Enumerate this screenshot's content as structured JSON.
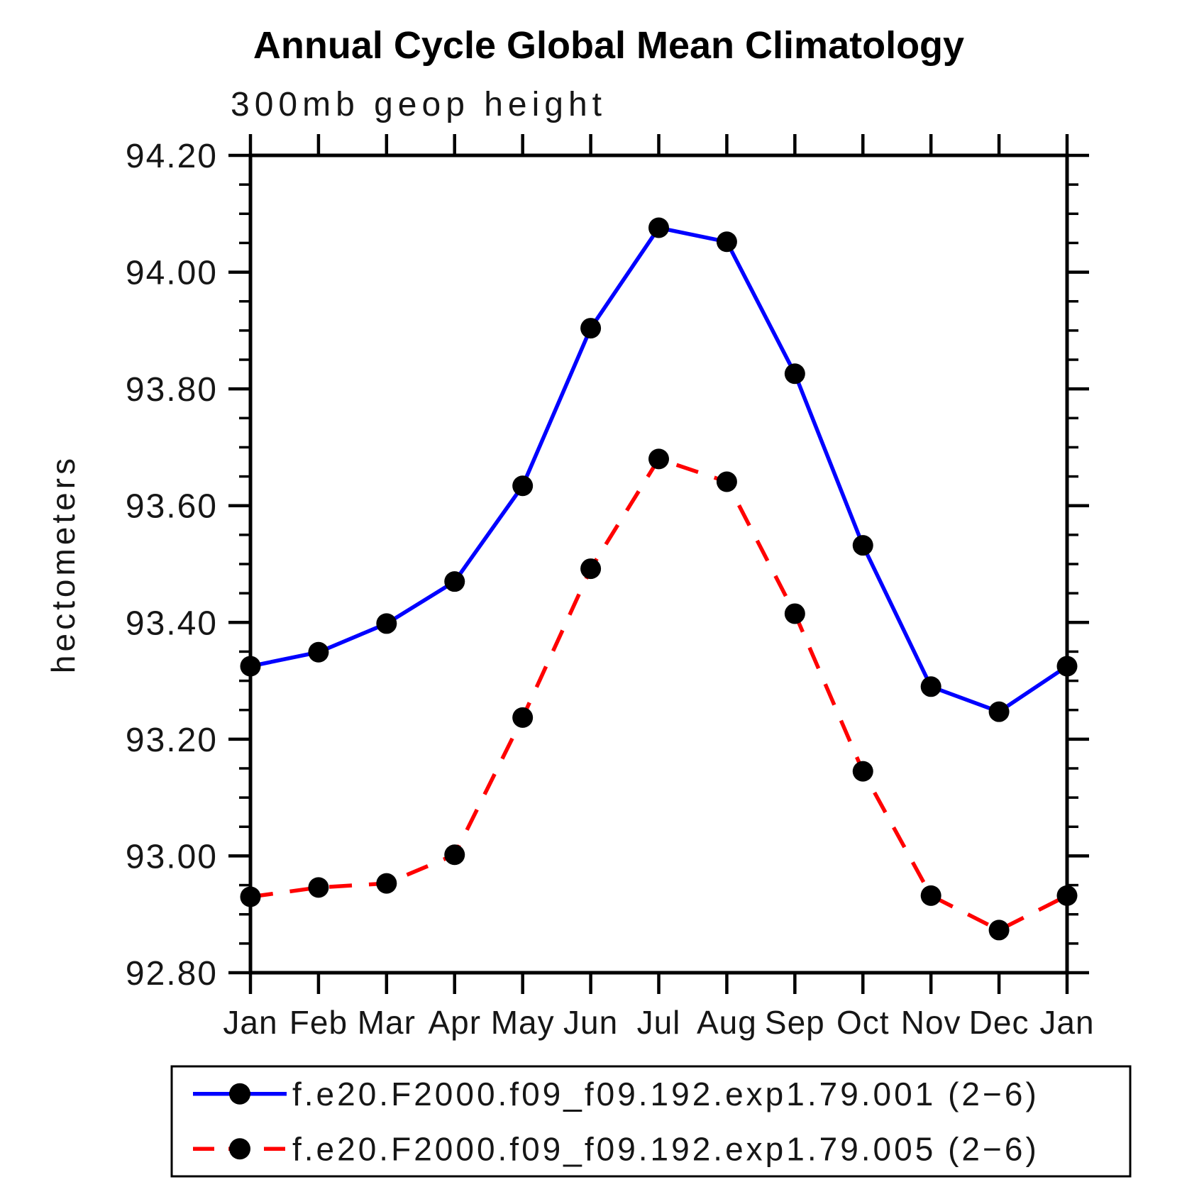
{
  "chart_data": {
    "type": "line",
    "title": "Annual Cycle Global Mean Climatology",
    "subtitle": "300mb geop height",
    "ylabel": "hectometers",
    "xlabel": "",
    "categories": [
      "Jan",
      "Feb",
      "Mar",
      "Apr",
      "May",
      "Jun",
      "Jul",
      "Aug",
      "Sep",
      "Oct",
      "Nov",
      "Dec",
      "Jan"
    ],
    "ylim": [
      92.8,
      94.2
    ],
    "ytick_major_step": 0.2,
    "ytick_minor_step": 0.05,
    "ytick_label_format": "2dp",
    "grid": false,
    "legend_position": "bottom",
    "frame_color": "#000000",
    "marker_color": "#000000",
    "series": [
      {
        "name": "f.e20.F2000.f09_f09.192.exp1.79.001 (2−6)",
        "color": "#0000ff",
        "style": "solid",
        "marker": "circle",
        "values": [
          93.325,
          93.349,
          93.398,
          93.47,
          93.634,
          93.904,
          94.076,
          94.052,
          93.826,
          93.532,
          93.29,
          93.247,
          93.325
        ]
      },
      {
        "name": "f.e20.F2000.f09_f09.192.exp1.79.005 (2−6)",
        "color": "#ff0000",
        "style": "dashed",
        "marker": "circle",
        "values": [
          92.93,
          92.946,
          92.953,
          93.002,
          93.237,
          93.492,
          93.68,
          93.641,
          93.415,
          93.145,
          92.932,
          92.873,
          92.932
        ]
      }
    ]
  }
}
